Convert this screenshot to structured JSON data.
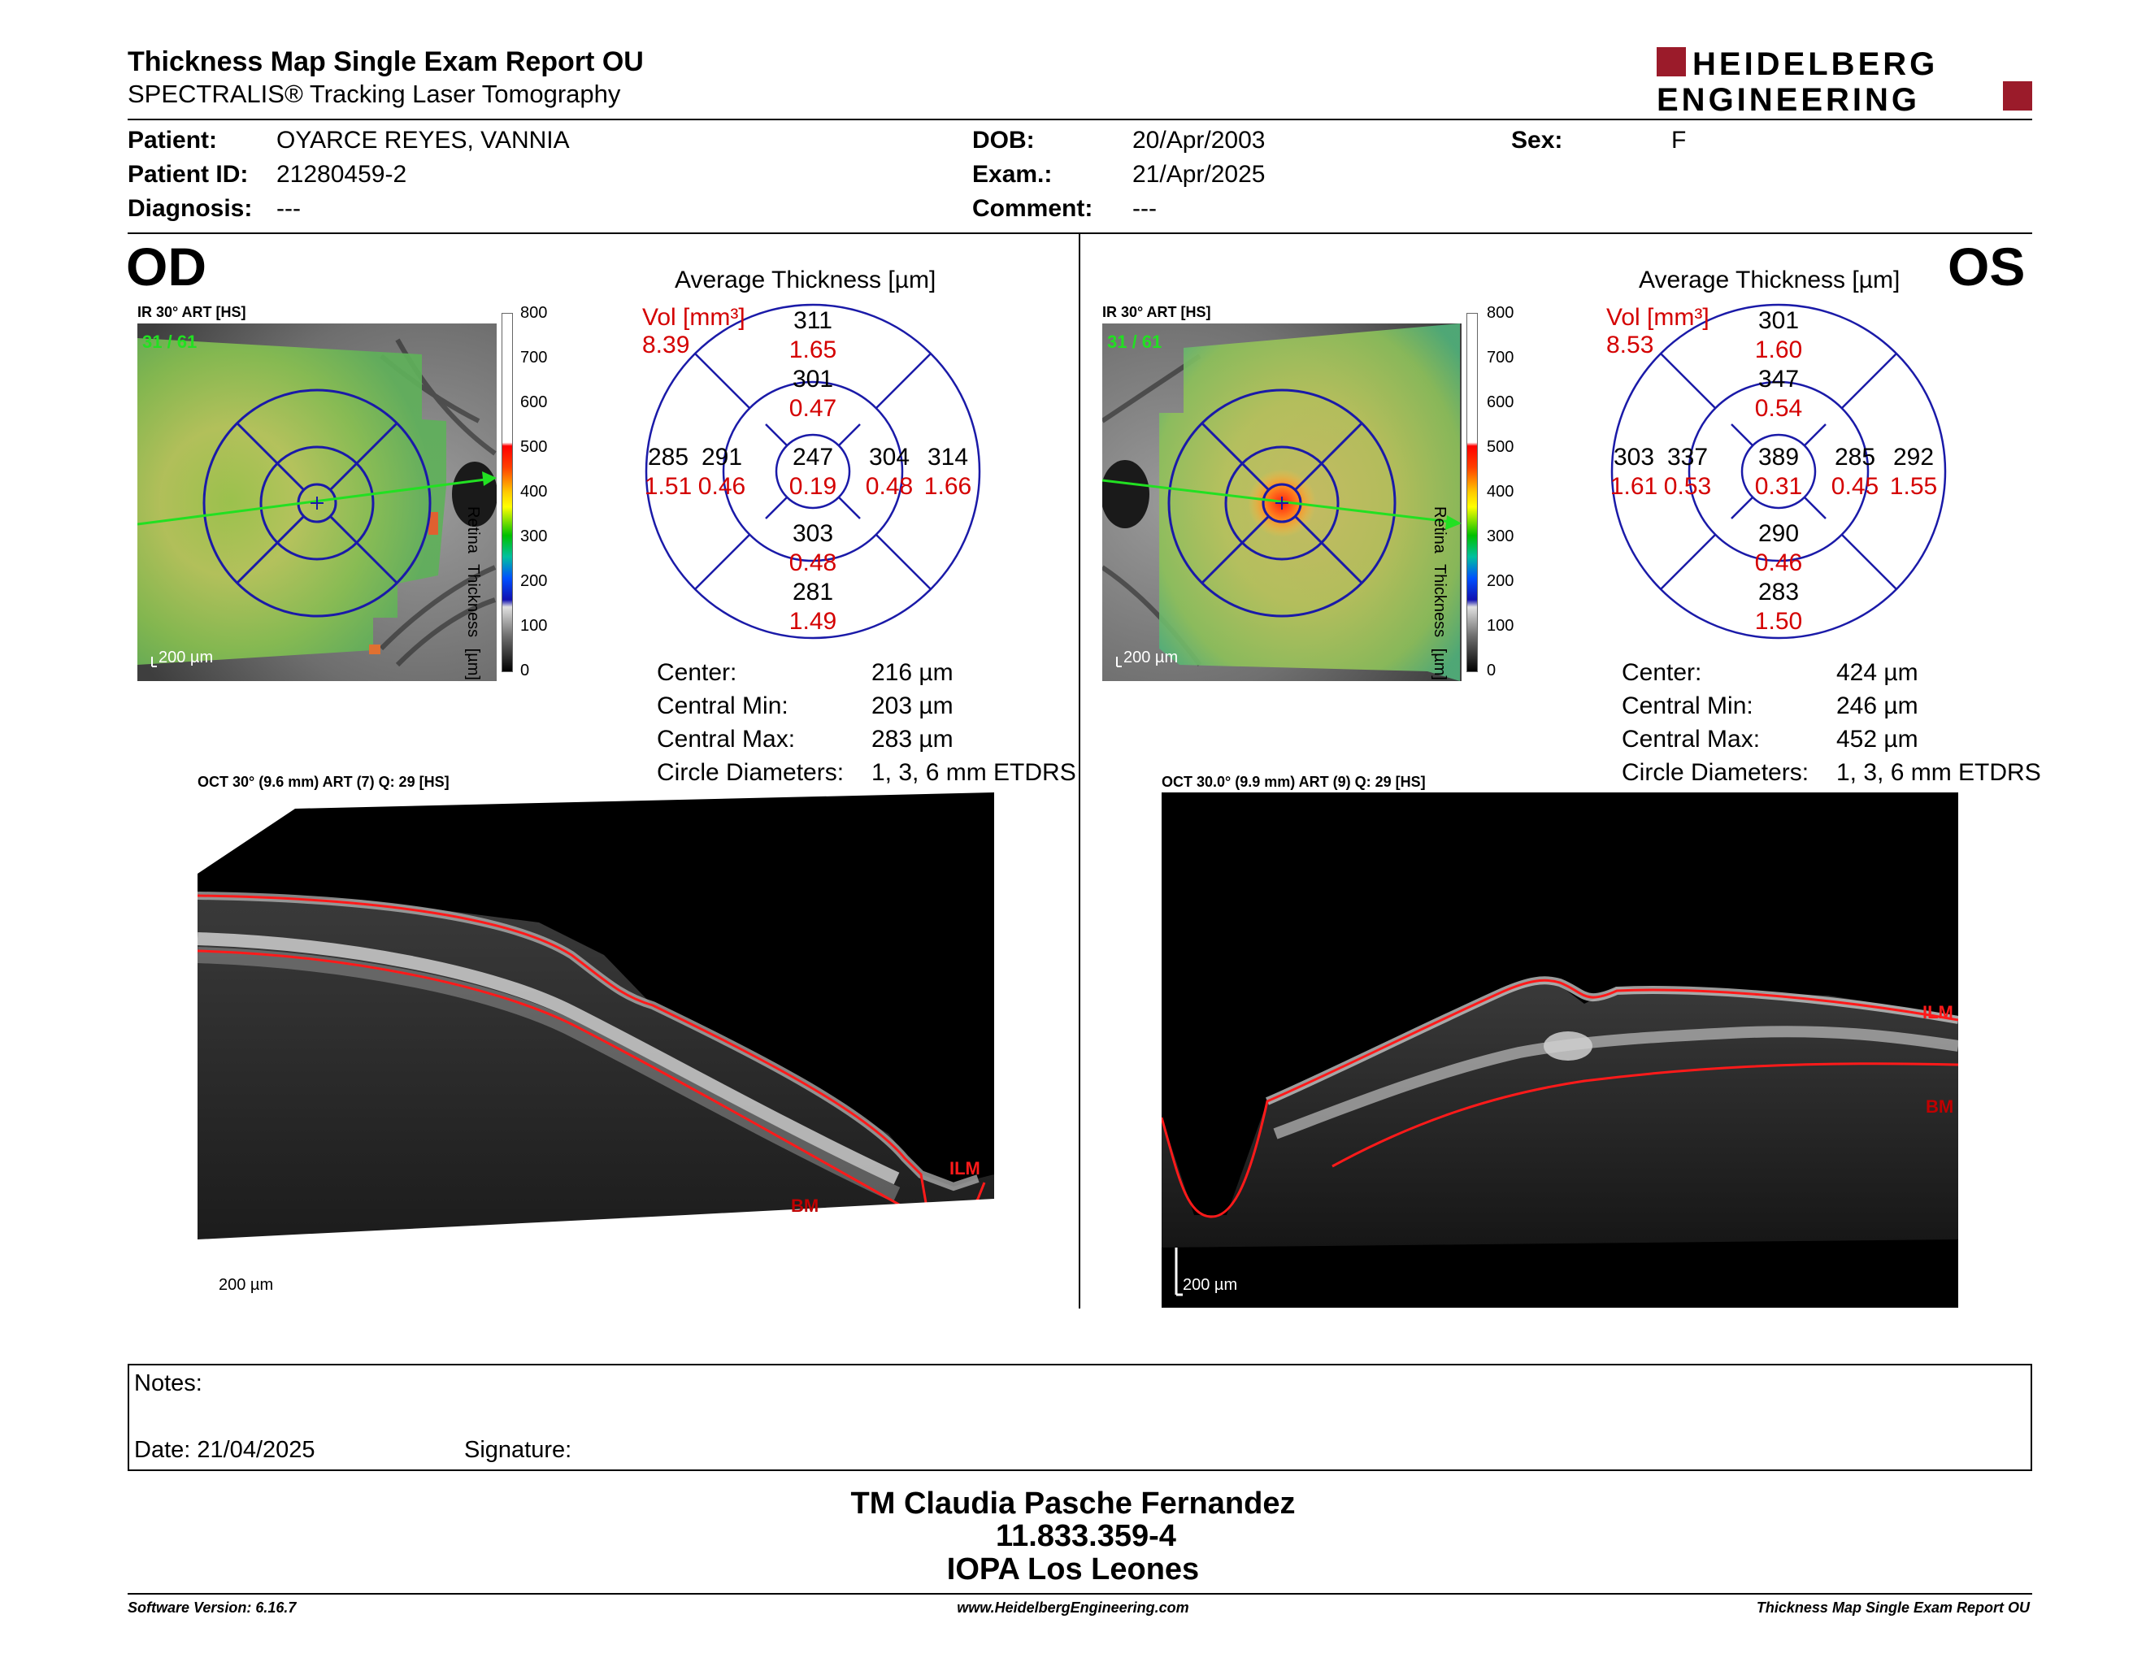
{
  "header": {
    "title": "Thickness Map Single Exam Report OU",
    "subtitle": "SPECTRALIS® Tracking Laser Tomography",
    "logo_line1": "HEIDELBERG",
    "logo_line2": "ENGINEERING"
  },
  "patient": {
    "patient_label": "Patient:",
    "patient_value": "OYARCE REYES, VANNIA",
    "id_label": "Patient ID:",
    "id_value": "21280459-2",
    "diagnosis_label": "Diagnosis:",
    "diagnosis_value": "---",
    "dob_label": "DOB:",
    "dob_value": "20/Apr/2003",
    "exam_label": "Exam.:",
    "exam_value": "21/Apr/2025",
    "comment_label": "Comment:",
    "comment_value": "---",
    "sex_label": "Sex:",
    "sex_value": "F"
  },
  "od": {
    "eye_label": "OD",
    "ir_label": "IR 30° ART [HS]",
    "frames": "31 / 61",
    "scale_bar": "200 µm",
    "colorbar_ticks": [
      "800",
      "700",
      "600",
      "500",
      "400",
      "300",
      "200",
      "100",
      "0"
    ],
    "colorbar_title": "Retina Thickness [µm]",
    "avg_title": "Average Thickness [µm]",
    "vol_label": "Vol [mm³]",
    "vol_total": "8.39",
    "grid": {
      "outer_top": "311",
      "outer_top_vol": "1.65",
      "inner_top": "301",
      "inner_top_vol": "0.47",
      "outer_left": "285",
      "outer_left_vol": "1.51",
      "inner_left": "291",
      "inner_left_vol": "0.46",
      "center": "247",
      "center_vol": "0.19",
      "inner_right": "304",
      "inner_right_vol": "0.48",
      "outer_right": "314",
      "outer_right_vol": "1.66",
      "inner_bottom": "303",
      "inner_bottom_vol": "0.48",
      "outer_bottom": "281",
      "outer_bottom_vol": "1.49"
    },
    "stats": {
      "center_label": "Center:",
      "center_value": "216 µm",
      "min_label": "Central Min:",
      "min_value": "203 µm",
      "max_label": "Central Max:",
      "max_value": "283 µm",
      "diam_label": "Circle Diameters:",
      "diam_value": "1, 3, 6 mm ETDRS"
    },
    "oct_label": "OCT 30° (9.6 mm) ART (7) Q: 29 [HS]",
    "ilm": "ILM",
    "bm": "BM",
    "oct_scale": "200 µm"
  },
  "os": {
    "eye_label": "OS",
    "ir_label": "IR 30° ART [HS]",
    "frames": "31 / 61",
    "scale_bar": "200 µm",
    "colorbar_ticks": [
      "800",
      "700",
      "600",
      "500",
      "400",
      "300",
      "200",
      "100",
      "0"
    ],
    "colorbar_title": "Retina Thickness [µm]",
    "avg_title": "Average Thickness [µm]",
    "vol_label": "Vol [mm³]",
    "vol_total": "8.53",
    "grid": {
      "outer_top": "301",
      "outer_top_vol": "1.60",
      "inner_top": "347",
      "inner_top_vol": "0.54",
      "outer_left": "303",
      "outer_left_vol": "1.61",
      "inner_left": "337",
      "inner_left_vol": "0.53",
      "center": "389",
      "center_vol": "0.31",
      "inner_right": "285",
      "inner_right_vol": "0.45",
      "outer_right": "292",
      "outer_right_vol": "1.55",
      "inner_bottom": "290",
      "inner_bottom_vol": "0.46",
      "outer_bottom": "283",
      "outer_bottom_vol": "1.50"
    },
    "stats": {
      "center_label": "Center:",
      "center_value": "424 µm",
      "min_label": "Central Min:",
      "min_value": "246 µm",
      "max_label": "Central Max:",
      "max_value": "452 µm",
      "diam_label": "Circle Diameters:",
      "diam_value": "1, 3, 6 mm ETDRS"
    },
    "oct_label": "OCT 30.0° (9.9 mm) ART (9) Q: 29 [HS]",
    "ilm": "ILM",
    "bm": "BM",
    "oct_scale": "200 µm"
  },
  "notes": {
    "notes_label": "Notes:",
    "date_label": "Date: 21/04/2025",
    "signature_label": "Signature:"
  },
  "signature": {
    "name": "TM Claudia Pasche Fernandez",
    "id": "11.833.359-4",
    "place": "IOPA Los Leones"
  },
  "footer": {
    "software": "Software Version: 6.16.7",
    "website": "www.HeidelbergEngineering.com",
    "report": "Thickness Map Single Exam Report OU"
  },
  "colors": {
    "red_text": "#d40000",
    "grid_blue": "#1a1aa8",
    "logo_red": "#9b1b2a"
  }
}
